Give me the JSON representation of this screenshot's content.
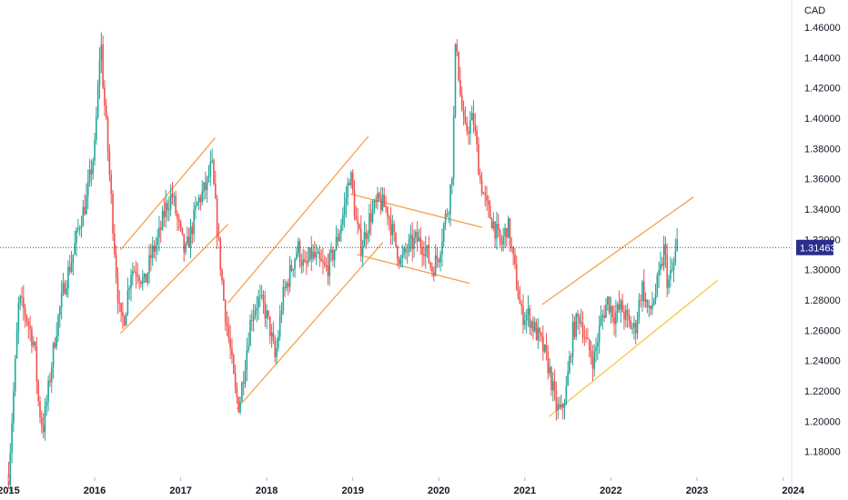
{
  "chart_data": {
    "type": "candlestick",
    "currency_label": "CAD",
    "last_price": 1.31463,
    "last_price_label": "1.31463",
    "price_ticks": [
      1.18,
      1.2,
      1.22,
      1.24,
      1.26,
      1.28,
      1.3,
      1.32,
      1.34,
      1.36,
      1.38,
      1.4,
      1.42,
      1.44,
      1.46
    ],
    "price_tick_labels": [
      "1.18000",
      "1.20000",
      "1.22000",
      "1.24000",
      "1.26000",
      "1.28000",
      "1.30000",
      "1.32000",
      "1.34000",
      "1.36000",
      "1.38000",
      "1.40000",
      "1.42000",
      "1.44000",
      "1.46000"
    ],
    "ylim": [
      1.163,
      1.478
    ],
    "xlim": [
      2014.9,
      2024.1
    ],
    "year_ticks": [
      2015,
      2016,
      2017,
      2018,
      2019,
      2020,
      2021,
      2022,
      2023,
      2024
    ],
    "year_tick_labels": [
      "2015",
      "2016",
      "2017",
      "2018",
      "2019",
      "2020",
      "2021",
      "2022",
      "2023",
      "2024"
    ],
    "path": [
      [
        2015.0,
        1.165
      ],
      [
        2015.08,
        1.24
      ],
      [
        2015.12,
        1.28
      ],
      [
        2015.2,
        1.27
      ],
      [
        2015.3,
        1.25
      ],
      [
        2015.35,
        1.21
      ],
      [
        2015.4,
        1.195
      ],
      [
        2015.46,
        1.22
      ],
      [
        2015.55,
        1.26
      ],
      [
        2015.65,
        1.29
      ],
      [
        2015.75,
        1.31
      ],
      [
        2015.82,
        1.33
      ],
      [
        2015.9,
        1.345
      ],
      [
        2016.0,
        1.38
      ],
      [
        2016.04,
        1.42
      ],
      [
        2016.07,
        1.455
      ],
      [
        2016.1,
        1.42
      ],
      [
        2016.14,
        1.39
      ],
      [
        2016.2,
        1.34
      ],
      [
        2016.26,
        1.29
      ],
      [
        2016.3,
        1.265
      ],
      [
        2016.35,
        1.27
      ],
      [
        2016.42,
        1.3
      ],
      [
        2016.5,
        1.3
      ],
      [
        2016.58,
        1.29
      ],
      [
        2016.66,
        1.31
      ],
      [
        2016.74,
        1.32
      ],
      [
        2016.82,
        1.34
      ],
      [
        2016.9,
        1.35
      ],
      [
        2016.97,
        1.33
      ],
      [
        2017.05,
        1.31
      ],
      [
        2017.12,
        1.325
      ],
      [
        2017.2,
        1.345
      ],
      [
        2017.3,
        1.355
      ],
      [
        2017.36,
        1.37
      ],
      [
        2017.42,
        1.33
      ],
      [
        2017.5,
        1.28
      ],
      [
        2017.58,
        1.245
      ],
      [
        2017.63,
        1.22
      ],
      [
        2017.68,
        1.21
      ],
      [
        2017.75,
        1.24
      ],
      [
        2017.82,
        1.27
      ],
      [
        2017.9,
        1.28
      ],
      [
        2017.97,
        1.275
      ],
      [
        2018.04,
        1.26
      ],
      [
        2018.1,
        1.24
      ],
      [
        2018.18,
        1.28
      ],
      [
        2018.28,
        1.3
      ],
      [
        2018.36,
        1.315
      ],
      [
        2018.44,
        1.3
      ],
      [
        2018.52,
        1.31
      ],
      [
        2018.6,
        1.305
      ],
      [
        2018.68,
        1.3
      ],
      [
        2018.74,
        1.305
      ],
      [
        2018.82,
        1.32
      ],
      [
        2018.9,
        1.34
      ],
      [
        2018.97,
        1.365
      ],
      [
        2019.04,
        1.33
      ],
      [
        2019.1,
        1.315
      ],
      [
        2019.2,
        1.335
      ],
      [
        2019.3,
        1.345
      ],
      [
        2019.4,
        1.34
      ],
      [
        2019.48,
        1.32
      ],
      [
        2019.56,
        1.305
      ],
      [
        2019.65,
        1.315
      ],
      [
        2019.74,
        1.32
      ],
      [
        2019.84,
        1.315
      ],
      [
        2019.92,
        1.3
      ],
      [
        2020.0,
        1.31
      ],
      [
        2020.06,
        1.33
      ],
      [
        2020.12,
        1.345
      ],
      [
        2020.16,
        1.37
      ],
      [
        2020.2,
        1.46
      ],
      [
        2020.24,
        1.42
      ],
      [
        2020.3,
        1.39
      ],
      [
        2020.4,
        1.4
      ],
      [
        2020.48,
        1.36
      ],
      [
        2020.56,
        1.34
      ],
      [
        2020.64,
        1.33
      ],
      [
        2020.72,
        1.315
      ],
      [
        2020.8,
        1.33
      ],
      [
        2020.88,
        1.3
      ],
      [
        2020.96,
        1.27
      ],
      [
        2021.04,
        1.27
      ],
      [
        2021.12,
        1.26
      ],
      [
        2021.2,
        1.25
      ],
      [
        2021.28,
        1.235
      ],
      [
        2021.36,
        1.21
      ],
      [
        2021.42,
        1.205
      ],
      [
        2021.48,
        1.22
      ],
      [
        2021.56,
        1.26
      ],
      [
        2021.64,
        1.27
      ],
      [
        2021.72,
        1.25
      ],
      [
        2021.8,
        1.24
      ],
      [
        2021.88,
        1.265
      ],
      [
        2021.96,
        1.28
      ],
      [
        2022.04,
        1.27
      ],
      [
        2022.12,
        1.275
      ],
      [
        2022.2,
        1.265
      ],
      [
        2022.28,
        1.26
      ],
      [
        2022.36,
        1.29
      ],
      [
        2022.44,
        1.27
      ],
      [
        2022.52,
        1.285
      ],
      [
        2022.58,
        1.3
      ],
      [
        2022.62,
        1.315
      ],
      [
        2022.66,
        1.29
      ],
      [
        2022.72,
        1.3
      ],
      [
        2022.78,
        1.32
      ]
    ],
    "channels": [
      {
        "color": "#f6a04d",
        "lines": [
          [
            [
              2016.3,
              1.313
            ],
            [
              2017.4,
              1.387
            ]
          ],
          [
            [
              2016.3,
              1.258
            ],
            [
              2017.55,
              1.33
            ]
          ]
        ]
      },
      {
        "color": "#f6a04d",
        "lines": [
          [
            [
              2017.55,
              1.278
            ],
            [
              2019.18,
              1.388
            ]
          ],
          [
            [
              2017.65,
              1.208
            ],
            [
              2019.35,
              1.318
            ]
          ]
        ]
      },
      {
        "color": "#f6a04d",
        "lines": [
          [
            [
              2018.97,
              1.35
            ],
            [
              2020.5,
              1.328
            ]
          ],
          [
            [
              2019.05,
              1.31
            ],
            [
              2020.36,
              1.291
            ]
          ]
        ]
      },
      {
        "color": "#f6a04d",
        "lines": [
          [
            [
              2021.2,
              1.277
            ],
            [
              2022.96,
              1.348
            ]
          ]
        ]
      },
      {
        "color": "#f5c842",
        "lines": [
          [
            [
              2021.28,
              1.203
            ],
            [
              2023.24,
              1.293
            ]
          ]
        ]
      }
    ],
    "up_color": "#26a69a",
    "down_color": "#ef5350",
    "badge_color": "#2a2e8c",
    "last_price_line_color": "#131722"
  }
}
